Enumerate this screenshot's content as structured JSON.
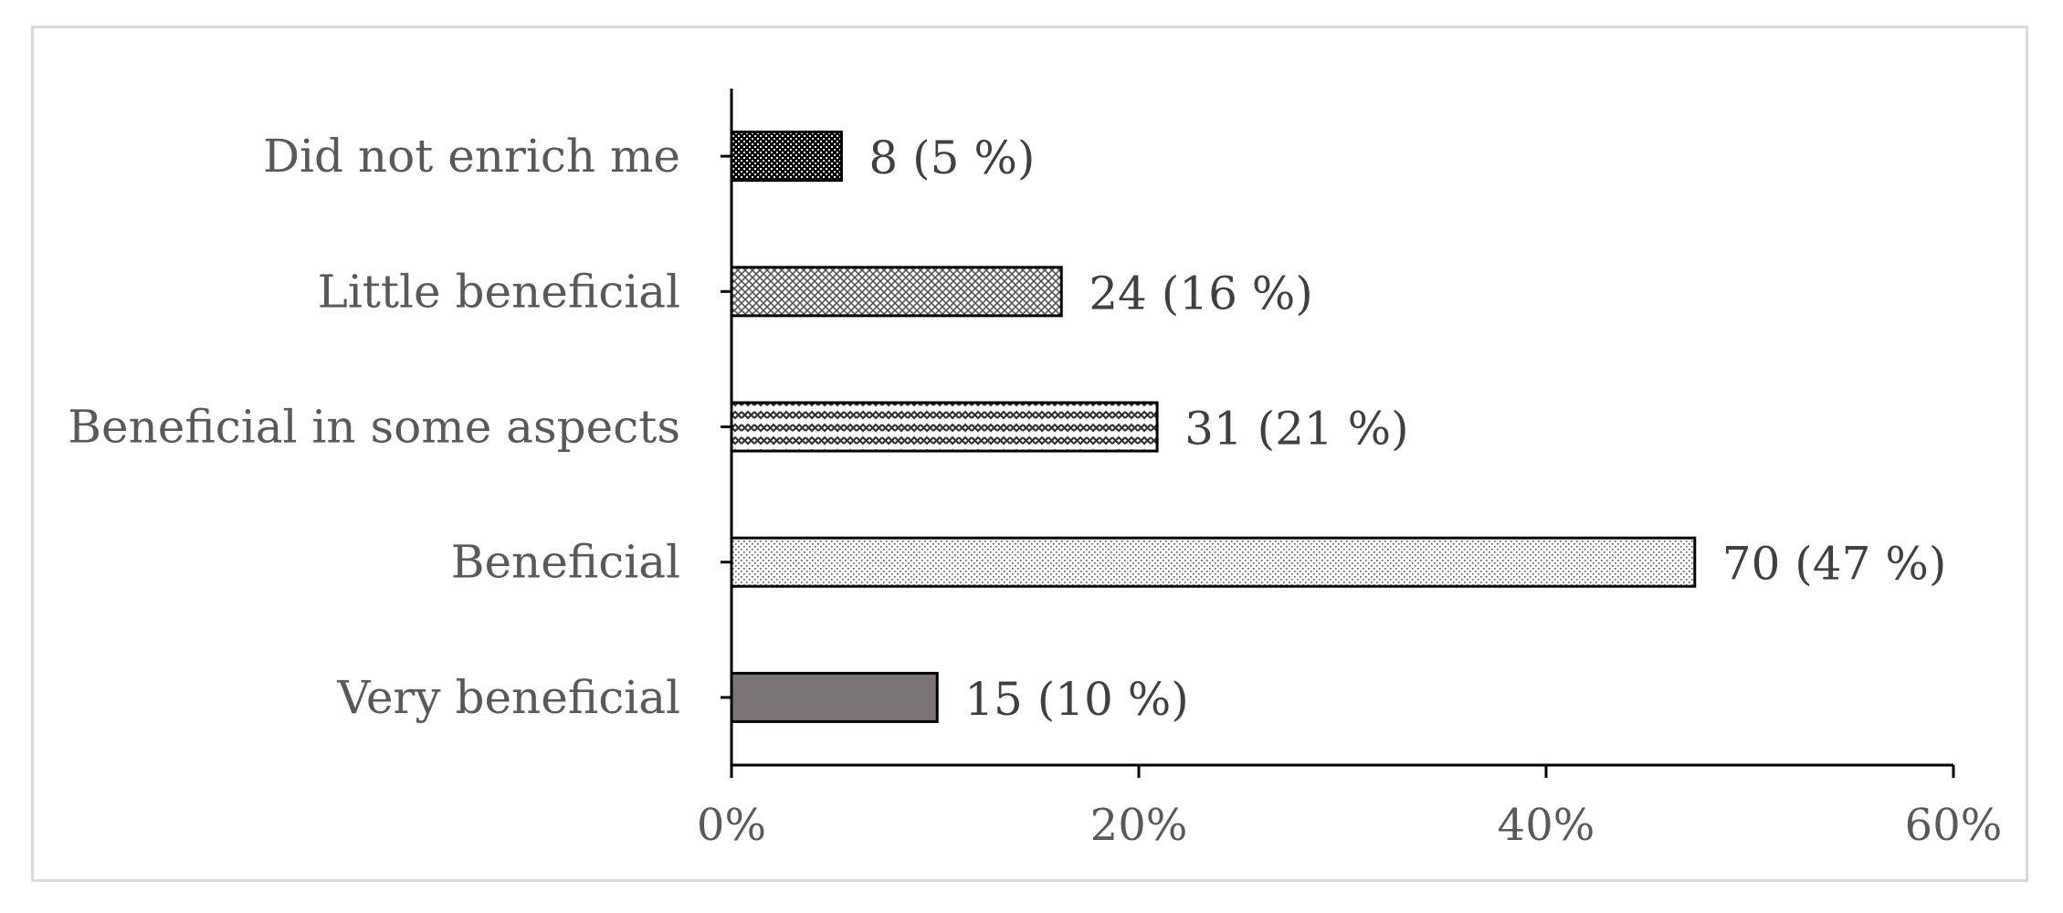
{
  "chart_data": {
    "type": "bar",
    "orientation": "horizontal",
    "title": "",
    "xlabel": "",
    "ylabel": "",
    "categories": [
      "Did not enrich me",
      "Little beneficial",
      "Beneficial in some aspects",
      "Beneficial",
      "Very beneficial"
    ],
    "values": [
      5.4,
      16.2,
      20.9,
      47.3,
      10.1
    ],
    "data_labels": [
      "8 (5 %)",
      "24 (16 %)",
      "31 (21 %)",
      "70 (47 %)",
      "15 (10 %)"
    ],
    "xlim": [
      0,
      60
    ],
    "xticks": [
      0,
      20,
      40,
      60
    ],
    "xtick_labels": [
      "0%",
      "20%",
      "40%",
      "60%"
    ],
    "grid": false,
    "legend": "none",
    "patterns": [
      "dense-dots",
      "crosshatch",
      "weave",
      "light-dots",
      "solid"
    ],
    "colors": {
      "solid_fill": "#7a7573",
      "dark_pattern": "#000000",
      "axis": "#000000",
      "text": "#595959",
      "frame": "#d9d9d9"
    }
  }
}
